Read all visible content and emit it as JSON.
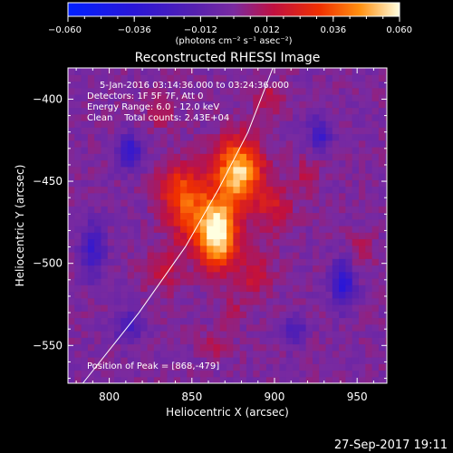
{
  "chart_data": {
    "type": "heatmap",
    "title": "Reconstructed RHESSI Image",
    "xlabel": "Heliocentric X (arcsec)",
    "ylabel": "Heliocentric Y (arcsec)",
    "xlim": [
      775,
      968
    ],
    "ylim": [
      -573,
      -381
    ],
    "xticks": [
      800,
      850,
      900,
      950
    ],
    "xtick_labels": [
      "800",
      "850",
      "900",
      "950"
    ],
    "yticks": [
      -550,
      -500,
      -450,
      -400
    ],
    "ytick_labels": [
      "−550",
      "−500",
      "−450",
      "−400"
    ],
    "colorbar": {
      "range": [
        -0.06,
        0.06
      ],
      "ticks": [
        -0.06,
        -0.036,
        -0.012,
        0.012,
        0.036,
        0.06
      ],
      "tick_labels": [
        "−0.060",
        "−0.036",
        "−0.012",
        "0.012",
        "0.036",
        "0.060"
      ],
      "unit_label": "(photons cm⁻² s⁻¹ asec⁻²)"
    },
    "annotations": [
      "5-Jan-2016 03:14:36.000 to 03:24:36.000",
      "Detectors: 1F 5F 7F, Att 0",
      "Energy Range: 6.0 - 12.0 keV",
      "Clean    Total counts: 2.43E+04"
    ],
    "peak_label": "Position of Peak = [868,-479]",
    "peak": [
      868,
      -479
    ],
    "limb_curve": [
      [
        784,
        -573
      ],
      [
        818,
        -530
      ],
      [
        846,
        -490
      ],
      [
        866,
        -455
      ],
      [
        884,
        -420
      ],
      [
        899,
        -381
      ]
    ],
    "sources": [
      {
        "x": 866,
        "y": -482,
        "amp": 0.06,
        "sx": 8,
        "sy": 14
      },
      {
        "x": 878,
        "y": -444,
        "amp": 0.055,
        "sx": 10,
        "sy": 14
      },
      {
        "x": 850,
        "y": -468,
        "amp": 0.03,
        "sx": 10,
        "sy": 16
      },
      {
        "x": 840,
        "y": -453,
        "amp": 0.02,
        "sx": 8,
        "sy": 10
      },
      {
        "x": 900,
        "y": -467,
        "amp": 0.018,
        "sx": 8,
        "sy": 10
      },
      {
        "x": 832,
        "y": -505,
        "amp": 0.012,
        "sx": 9,
        "sy": 10
      },
      {
        "x": 888,
        "y": -507,
        "amp": 0.016,
        "sx": 8,
        "sy": 10
      },
      {
        "x": 920,
        "y": -447,
        "amp": 0.012,
        "sx": 6,
        "sy": 8
      },
      {
        "x": 897,
        "y": -399,
        "amp": 0.013,
        "sx": 7,
        "sy": 7
      },
      {
        "x": 832,
        "y": -408,
        "amp": 0.012,
        "sx": 6,
        "sy": 7
      },
      {
        "x": 865,
        "y": -549,
        "amp": 0.011,
        "sx": 6,
        "sy": 6
      },
      {
        "x": 873,
        "y": -528,
        "amp": 0.011,
        "sx": 5,
        "sy": 6
      },
      {
        "x": 952,
        "y": -492,
        "amp": 0.01,
        "sx": 6,
        "sy": 9
      },
      {
        "x": 812,
        "y": -432,
        "amp": -0.034,
        "sx": 5,
        "sy": 7
      },
      {
        "x": 790,
        "y": -492,
        "amp": -0.026,
        "sx": 5,
        "sy": 12
      },
      {
        "x": 812,
        "y": -538,
        "amp": -0.02,
        "sx": 6,
        "sy": 7
      },
      {
        "x": 942,
        "y": -512,
        "amp": -0.034,
        "sx": 5,
        "sy": 10
      },
      {
        "x": 928,
        "y": -421,
        "amp": -0.026,
        "sx": 5,
        "sy": 7
      },
      {
        "x": 912,
        "y": -540,
        "amp": -0.02,
        "sx": 5,
        "sy": 6
      }
    ]
  },
  "timestamp": "27-Sep-2017 19:11"
}
